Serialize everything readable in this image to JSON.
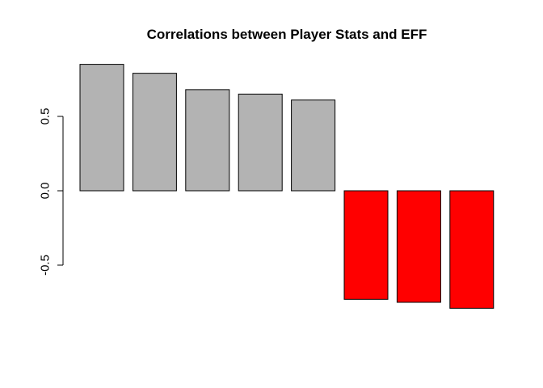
{
  "chart_data": {
    "type": "bar",
    "title": "Correlations between Player Stats and EFF",
    "xlabel": "",
    "ylabel": "",
    "values": [
      0.85,
      0.79,
      0.68,
      0.65,
      0.61,
      -0.73,
      -0.75,
      -0.79
    ],
    "colors": [
      "#b3b3b3",
      "#b3b3b3",
      "#b3b3b3",
      "#b3b3b3",
      "#b3b3b3",
      "#ff0000",
      "#ff0000",
      "#ff0000"
    ],
    "ylim": [
      -0.79,
      0.85
    ],
    "yticks": [
      -0.5,
      0.0,
      0.5
    ],
    "ytick_labels": [
      "-0.5",
      "0.0",
      "0.5"
    ],
    "grid": false,
    "legend": "none"
  }
}
